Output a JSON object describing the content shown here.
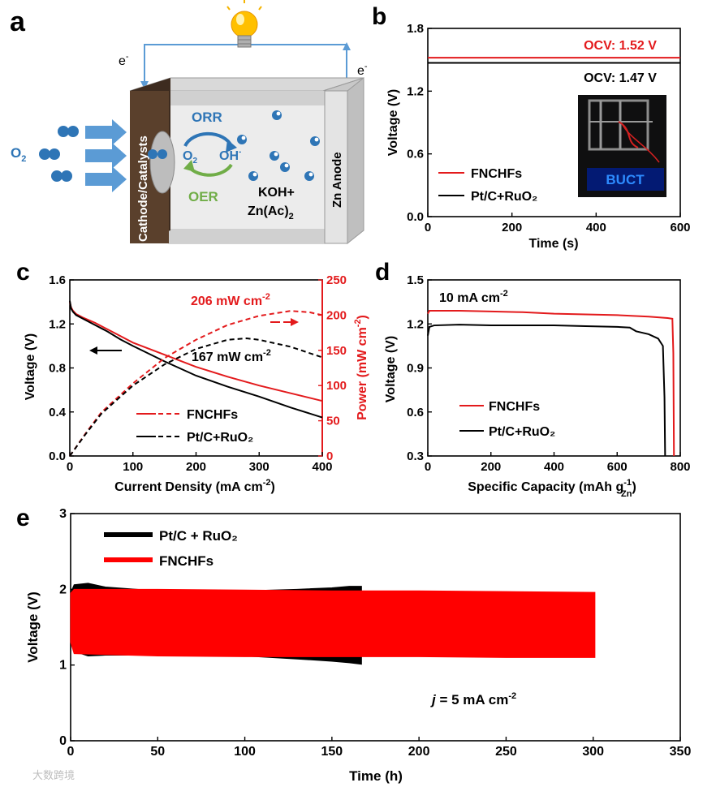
{
  "panels": {
    "a": "a",
    "b": "b",
    "c": "c",
    "d": "d",
    "e": "e"
  },
  "schematic": {
    "electron_left": "e",
    "electron_right": "e",
    "electron_sup": "-",
    "o2_label": "O",
    "o2_sub": "2",
    "cathode_label": "Cathode/Catalysts",
    "anode_label": "Zn Anode",
    "orr_label": "ORR",
    "oer_label": "OER",
    "o2_cycle": "O",
    "o2_cycle_sub": "2",
    "oh_label": "OH",
    "oh_sup": "-",
    "electrolyte_line1": "KOH+",
    "electrolyte_line2": "Zn(Ac)",
    "electrolyte_sub": "2",
    "colors": {
      "orr": "#2e75b6",
      "oer": "#70ad47",
      "bulb": "#f5b400",
      "cathode": "#4a3526",
      "arrows": "#5b9bd5"
    }
  },
  "chart_data": [
    {
      "id": "b",
      "type": "line",
      "xlabel": "Time (s)",
      "ylabel": "Voltage (V)",
      "xlim": [
        0,
        600
      ],
      "ylim": [
        0.0,
        1.8
      ],
      "xticks": [
        "0",
        "200",
        "400",
        "600"
      ],
      "yticks": [
        "0.0",
        "0.6",
        "1.2",
        "1.8"
      ],
      "series": [
        {
          "name": "FNCHFs",
          "color": "#e31a1c",
          "x": [
            0,
            600
          ],
          "y": [
            1.52,
            1.52
          ]
        },
        {
          "name": "Pt/C+RuO₂",
          "color": "#000000",
          "x": [
            0,
            600
          ],
          "y": [
            1.47,
            1.47
          ]
        }
      ],
      "annotations": [
        "OCV: 1.52 V",
        "OCV: 1.47 V"
      ],
      "inset_text": "BUCT",
      "legend": "bottom-left"
    },
    {
      "id": "c",
      "type": "line",
      "xlabel": "Current Density (mA cm",
      "xlabel_sup": "-2",
      "xlabel_tail": ")",
      "ylabel": "Voltage (V)",
      "ylabel_right": "Power (mW cm",
      "ylabel_right_sup": "-2",
      "ylabel_right_tail": ")",
      "xlim": [
        0,
        400
      ],
      "ylim": [
        0.0,
        1.6
      ],
      "ylim_right": [
        0,
        250
      ],
      "xticks": [
        "0",
        "100",
        "200",
        "300",
        "400"
      ],
      "yticks": [
        "0.0",
        "0.4",
        "0.8",
        "1.2",
        "1.6"
      ],
      "yticks_right": [
        "0",
        "50",
        "100",
        "150",
        "200",
        "250"
      ],
      "series": [
        {
          "name": "FNCHFs",
          "kind": "voltage",
          "color": "#e31a1c",
          "x": [
            0,
            2,
            5,
            10,
            20,
            40,
            60,
            80,
            100,
            150,
            200,
            250,
            300,
            350,
            400
          ],
          "y": [
            1.4,
            1.35,
            1.32,
            1.29,
            1.26,
            1.21,
            1.15,
            1.09,
            1.03,
            0.92,
            0.81,
            0.72,
            0.64,
            0.57,
            0.5
          ]
        },
        {
          "name": "Pt/C+RuO₂",
          "kind": "voltage",
          "color": "#000000",
          "x": [
            0,
            2,
            5,
            10,
            20,
            40,
            60,
            80,
            100,
            150,
            200,
            250,
            300,
            350,
            400
          ],
          "y": [
            1.41,
            1.34,
            1.31,
            1.28,
            1.25,
            1.19,
            1.13,
            1.06,
            1.0,
            0.86,
            0.73,
            0.63,
            0.54,
            0.44,
            0.35
          ]
        },
        {
          "name": "FNCHFs",
          "kind": "power",
          "color": "#e31a1c",
          "x": [
            0,
            25,
            50,
            100,
            150,
            200,
            250,
            300,
            350,
            380,
            400
          ],
          "y": [
            0,
            32,
            62,
            103,
            139,
            165,
            186,
            199,
            206,
            204,
            200
          ]
        },
        {
          "name": "Pt/C+RuO₂",
          "kind": "power",
          "color": "#000000",
          "x": [
            0,
            25,
            50,
            100,
            150,
            200,
            250,
            280,
            300,
            350,
            400
          ],
          "y": [
            0,
            31,
            60,
            100,
            130,
            152,
            165,
            167,
            165,
            155,
            140
          ]
        }
      ],
      "annotations": [
        "206 mW cm",
        "167 mW cm"
      ],
      "annotation_sup": "-2",
      "legend": "bottom-center"
    },
    {
      "id": "d",
      "type": "line",
      "xlabel": "Specific Capacity (mAh g",
      "xlabel_sup": "-1",
      "xlabel_sub": "Zn",
      "xlabel_tail": ")",
      "ylabel": "Voltage (V)",
      "xlim": [
        0,
        800
      ],
      "ylim": [
        0.3,
        1.5
      ],
      "xticks": [
        "0",
        "200",
        "400",
        "600",
        "800"
      ],
      "yticks": [
        "0.3",
        "0.6",
        "0.9",
        "1.2",
        "1.5"
      ],
      "series": [
        {
          "name": "FNCHFs",
          "color": "#e31a1c",
          "x": [
            0,
            5,
            100,
            200,
            300,
            400,
            500,
            600,
            700,
            760,
            775,
            778,
            780
          ],
          "y": [
            1.27,
            1.29,
            1.29,
            1.285,
            1.28,
            1.27,
            1.265,
            1.26,
            1.25,
            1.24,
            1.235,
            1.0,
            0.3
          ]
        },
        {
          "name": "Pt/C+RuO₂",
          "color": "#000000",
          "x": [
            0,
            5,
            20,
            100,
            200,
            300,
            400,
            500,
            600,
            640,
            660,
            700,
            730,
            745,
            750,
            752
          ],
          "y": [
            1.12,
            1.18,
            1.19,
            1.195,
            1.19,
            1.19,
            1.19,
            1.185,
            1.18,
            1.175,
            1.15,
            1.13,
            1.1,
            1.05,
            0.7,
            0.3
          ]
        }
      ],
      "annotations": [
        "10 mA cm"
      ],
      "annotation_sup": "-2",
      "legend": "bottom-left"
    },
    {
      "id": "e",
      "type": "area",
      "xlabel": "Time (h)",
      "ylabel": "Voltage (V)",
      "xlim": [
        0,
        350
      ],
      "ylim": [
        0,
        3
      ],
      "xticks": [
        "0",
        "50",
        "100",
        "150",
        "200",
        "250",
        "300",
        "350"
      ],
      "yticks": [
        "0",
        "1",
        "2",
        "3"
      ],
      "series": [
        {
          "name": "Pt/C + RuO₂",
          "color": "#000000",
          "x": [
            0,
            2,
            10,
            20,
            50,
            100,
            130,
            150,
            160,
            167
          ],
          "upper": [
            1.95,
            2.06,
            2.08,
            2.03,
            1.98,
            1.98,
            2.0,
            2.02,
            2.04,
            2.04
          ],
          "lower": [
            1.3,
            1.18,
            1.12,
            1.13,
            1.13,
            1.12,
            1.08,
            1.05,
            1.03,
            1.01
          ]
        },
        {
          "name": "FNCHFs",
          "color": "#ff0000",
          "x": [
            0,
            2,
            50,
            100,
            150,
            200,
            250,
            300,
            301
          ],
          "upper": [
            1.95,
            2.0,
            2.0,
            1.99,
            1.98,
            1.98,
            1.97,
            1.96,
            1.96
          ],
          "lower": [
            1.3,
            1.15,
            1.12,
            1.11,
            1.11,
            1.11,
            1.1,
            1.1,
            1.1
          ]
        }
      ],
      "annotation_j": "j",
      "annotation_rest": " = 5 mA cm",
      "annotation_sup": "-2",
      "legend": "top-left"
    }
  ],
  "watermark": "大数跨境"
}
